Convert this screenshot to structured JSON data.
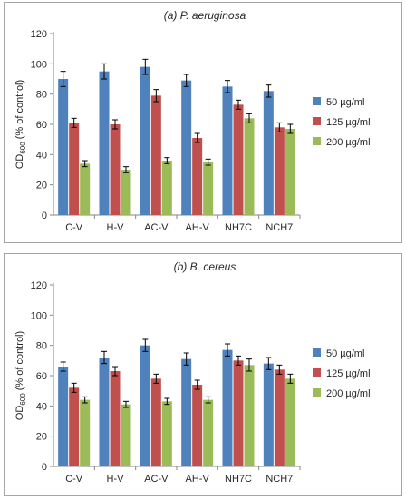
{
  "chart_data": [
    {
      "type": "bar",
      "title": "(a) P. aeruginosa",
      "ylabel_main": "OD",
      "ylabel_sub": "600",
      "ylabel_rest": " (% of control)",
      "ylim": [
        0,
        120
      ],
      "yticks": [
        "0",
        "20",
        "40",
        "60",
        "80",
        "100",
        "120"
      ],
      "categories": [
        "C-V",
        "H-V",
        "AC-V",
        "AH-V",
        "NH7C",
        "NCH7"
      ],
      "legend_position": "right",
      "grid": false,
      "series": [
        {
          "name": "50 µg/ml",
          "color": "#4f81bd",
          "values": [
            90,
            95,
            98,
            89,
            85,
            82
          ],
          "errors": [
            5,
            5,
            5,
            4,
            4,
            4
          ]
        },
        {
          "name": "125 µg/ml",
          "color": "#c0504d",
          "values": [
            61,
            60,
            79,
            51,
            73,
            58
          ],
          "errors": [
            3,
            3,
            4,
            3,
            3,
            3
          ]
        },
        {
          "name": "200 µg/ml",
          "color": "#9bbb59",
          "values": [
            34,
            30,
            36,
            35,
            64,
            57
          ],
          "errors": [
            2,
            2,
            2,
            2,
            3,
            3
          ]
        }
      ]
    },
    {
      "type": "bar",
      "title": "(b) B. cereus",
      "ylabel_main": "OD",
      "ylabel_sub": "600",
      "ylabel_rest": " (% of control)",
      "ylim": [
        0,
        120
      ],
      "yticks": [
        "0",
        "20",
        "40",
        "60",
        "80",
        "100",
        "120"
      ],
      "categories": [
        "C-V",
        "H-V",
        "AC-V",
        "AH-V",
        "NH7C",
        "NCH7"
      ],
      "legend_position": "right",
      "grid": false,
      "series": [
        {
          "name": "50 µg/ml",
          "color": "#4f81bd",
          "values": [
            66,
            72,
            80,
            71,
            77,
            68
          ],
          "errors": [
            3,
            4,
            4,
            4,
            4,
            4
          ]
        },
        {
          "name": "125 µg/ml",
          "color": "#c0504d",
          "values": [
            52,
            63,
            58,
            54,
            70,
            64
          ],
          "errors": [
            3,
            3,
            3,
            3,
            3,
            3
          ]
        },
        {
          "name": "200 µg/ml",
          "color": "#9bbb59",
          "values": [
            44,
            41,
            43,
            44,
            67,
            58
          ],
          "errors": [
            2,
            2,
            2,
            2,
            4,
            3
          ]
        }
      ]
    }
  ]
}
